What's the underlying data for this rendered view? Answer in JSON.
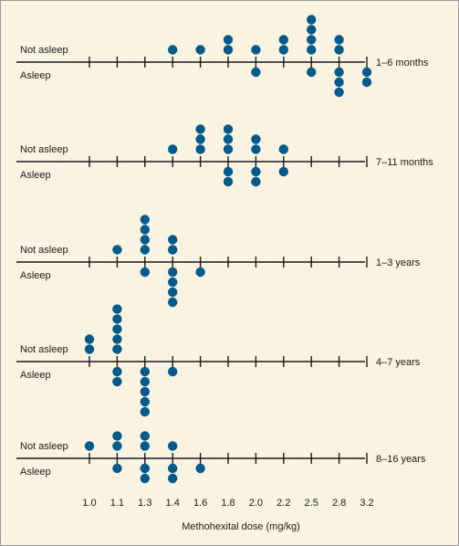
{
  "chart_data": {
    "type": "scatter",
    "title": "",
    "xlabel": "Methohexital dose (mg/kg)",
    "ylabel": "",
    "x_ticks": [
      "1.0",
      "1.1",
      "1.3",
      "1.4",
      "1.6",
      "1.8",
      "2.0",
      "2.2",
      "2.5",
      "2.8",
      "3.2"
    ],
    "above_label": "Not asleep",
    "below_label": "Asleep",
    "point_color": "#005a8c",
    "grid": false,
    "panels": [
      {
        "age_group": "1–6 months",
        "not_asleep": [
          {
            "x": "1.4",
            "count": 1
          },
          {
            "x": "1.6",
            "count": 1
          },
          {
            "x": "1.8",
            "count": 2
          },
          {
            "x": "2.0",
            "count": 1
          },
          {
            "x": "2.2",
            "count": 2
          },
          {
            "x": "2.5",
            "count": 4
          },
          {
            "x": "2.8",
            "count": 2
          }
        ],
        "asleep": [
          {
            "x": "2.0",
            "count": 1
          },
          {
            "x": "2.5",
            "count": 1
          },
          {
            "x": "2.8",
            "count": 3
          },
          {
            "x": "3.2",
            "count": 2
          }
        ]
      },
      {
        "age_group": "7–11 months",
        "not_asleep": [
          {
            "x": "1.4",
            "count": 1
          },
          {
            "x": "1.6",
            "count": 3
          },
          {
            "x": "1.8",
            "count": 3
          },
          {
            "x": "2.0",
            "count": 2
          },
          {
            "x": "2.2",
            "count": 1
          }
        ],
        "asleep": [
          {
            "x": "1.8",
            "count": 2
          },
          {
            "x": "2.0",
            "count": 2
          },
          {
            "x": "2.2",
            "count": 1
          }
        ]
      },
      {
        "age_group": "1–3 years",
        "not_asleep": [
          {
            "x": "1.1",
            "count": 1
          },
          {
            "x": "1.3",
            "count": 4
          },
          {
            "x": "1.4",
            "count": 2
          }
        ],
        "asleep": [
          {
            "x": "1.3",
            "count": 1
          },
          {
            "x": "1.4",
            "count": 4
          },
          {
            "x": "1.6",
            "count": 1
          }
        ]
      },
      {
        "age_group": "4–7 years",
        "not_asleep": [
          {
            "x": "1.0",
            "count": 2
          },
          {
            "x": "1.1",
            "count": 5
          }
        ],
        "asleep": [
          {
            "x": "1.1",
            "count": 2
          },
          {
            "x": "1.3",
            "count": 5
          },
          {
            "x": "1.4",
            "count": 1
          }
        ]
      },
      {
        "age_group": "8–16 years",
        "not_asleep": [
          {
            "x": "1.0",
            "count": 1
          },
          {
            "x": "1.1",
            "count": 2
          },
          {
            "x": "1.3",
            "count": 2
          },
          {
            "x": "1.4",
            "count": 1
          }
        ],
        "asleep": [
          {
            "x": "1.1",
            "count": 1
          },
          {
            "x": "1.3",
            "count": 2
          },
          {
            "x": "1.4",
            "count": 2
          },
          {
            "x": "1.6",
            "count": 1
          }
        ]
      }
    ]
  }
}
